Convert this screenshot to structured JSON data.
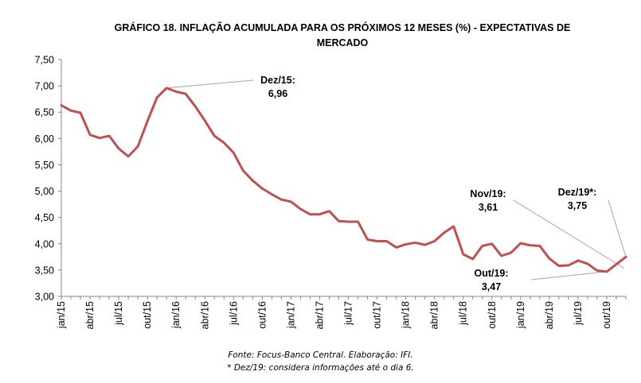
{
  "chart_data": {
    "type": "line",
    "title": "GRÁFICO 18. INFLAÇÃO ACUMULADA PARA OS PRÓXIMOS 12 MESES (%) - EXPECTATIVAS DE MERCADO",
    "title_lines": [
      "GRÁFICO 18. INFLAÇÃO ACUMULADA PARA OS PRÓXIMOS 12 MESES (%) - EXPECTATIVAS DE",
      "MERCADO"
    ],
    "ylim": [
      3.0,
      7.5
    ],
    "yticks": [
      "3,00",
      "3,50",
      "4,00",
      "4,50",
      "5,00",
      "5,50",
      "6,00",
      "6,50",
      "7,00",
      "7,50"
    ],
    "xtick_labels": [
      "jan/15",
      "abr/15",
      "jul/15",
      "out/15",
      "jan/16",
      "abr/16",
      "jul/16",
      "out/16",
      "jan/17",
      "abr/17",
      "jul/17",
      "out/17",
      "jan/18",
      "abr/18",
      "jul/18",
      "out/18",
      "jan/19",
      "abr/19",
      "jul/19",
      "out/19"
    ],
    "x_start": "jan/15",
    "x_end": "dez/19",
    "line_color": "#c0504d",
    "series": [
      {
        "values": [
          6.63,
          6.53,
          6.49,
          6.07,
          6.01,
          6.05,
          5.81,
          5.66,
          5.85,
          6.33,
          6.78,
          6.96,
          6.89,
          6.85,
          6.61,
          6.34,
          6.05,
          5.92,
          5.73,
          5.39,
          5.2,
          5.05,
          4.94,
          4.84,
          4.8,
          4.66,
          4.56,
          4.56,
          4.62,
          4.43,
          4.42,
          4.42,
          4.08,
          4.05,
          4.05,
          3.93,
          3.99,
          4.02,
          3.98,
          4.05,
          4.21,
          4.33,
          3.8,
          3.71,
          3.96,
          4.0,
          3.77,
          3.83,
          4.01,
          3.97,
          3.96,
          3.72,
          3.58,
          3.59,
          3.68,
          3.62,
          3.49,
          3.47,
          3.61,
          3.75
        ]
      }
    ],
    "annotations": [
      {
        "label": "Dez/15:",
        "value": "6,96"
      },
      {
        "label": "Nov/19:",
        "value": "3,61"
      },
      {
        "label": "Dez/19*:",
        "value": "3,75"
      },
      {
        "label": "Out/19:",
        "value": "3,47"
      }
    ]
  },
  "footnotes": {
    "source": "Fonte: Focus-Banco Central. Elaboração: IFI.",
    "note": "* Dez/19: considera informações até o dia 6."
  }
}
